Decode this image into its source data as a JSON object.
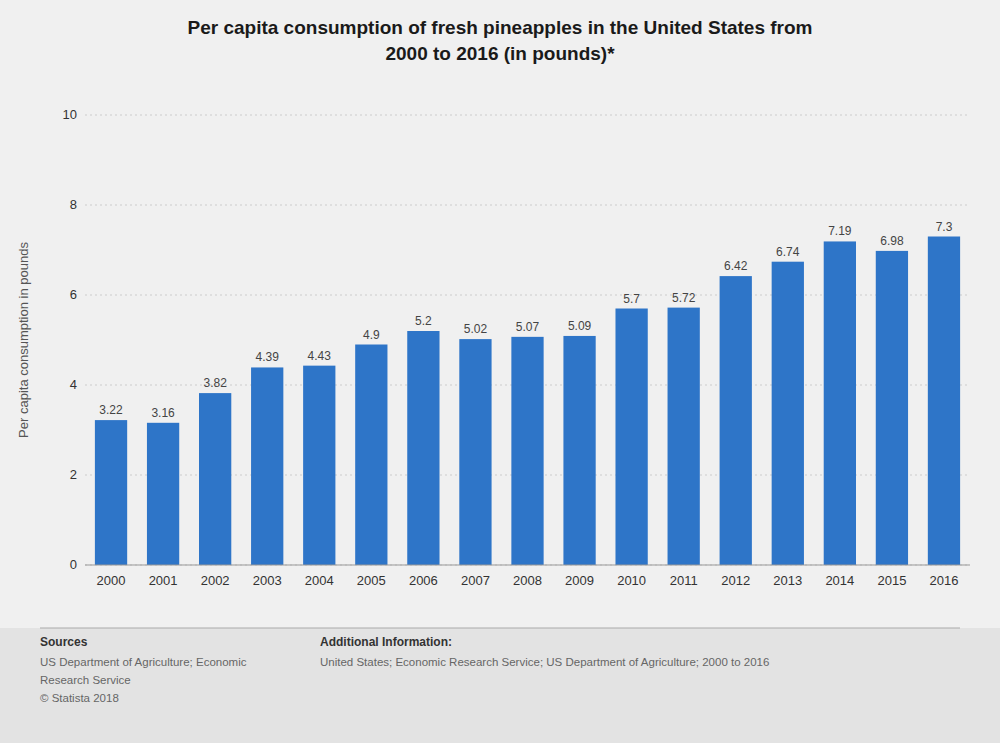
{
  "chart_data": {
    "type": "bar",
    "title": "Per capita consumption of fresh pineapples in the United States from\n2000 to 2016 (in pounds)*",
    "y_label": "Per capita consumption in pounds",
    "categories": [
      "2000",
      "2001",
      "2002",
      "2003",
      "2004",
      "2005",
      "2006",
      "2007",
      "2008",
      "2009",
      "2010",
      "2011",
      "2012",
      "2013",
      "2014",
      "2015",
      "2016"
    ],
    "values": [
      3.22,
      3.16,
      3.82,
      4.39,
      4.43,
      4.9,
      5.2,
      5.02,
      5.07,
      5.09,
      5.7,
      5.72,
      6.42,
      6.74,
      7.19,
      6.98,
      7.3
    ],
    "color": "#2e75c8",
    "ylim": [
      0,
      10
    ],
    "yticks": [
      0,
      2,
      4,
      6,
      8,
      10
    ],
    "grid": true,
    "data_labels": true,
    "annotations": [
      "Sources",
      "US Department of Agriculture; Economic\nResearch Service\n© Statista 2018",
      "Additional Information:",
      "United States; Economic Research Service; US Department of Agriculture; 2000 to 2016"
    ]
  }
}
